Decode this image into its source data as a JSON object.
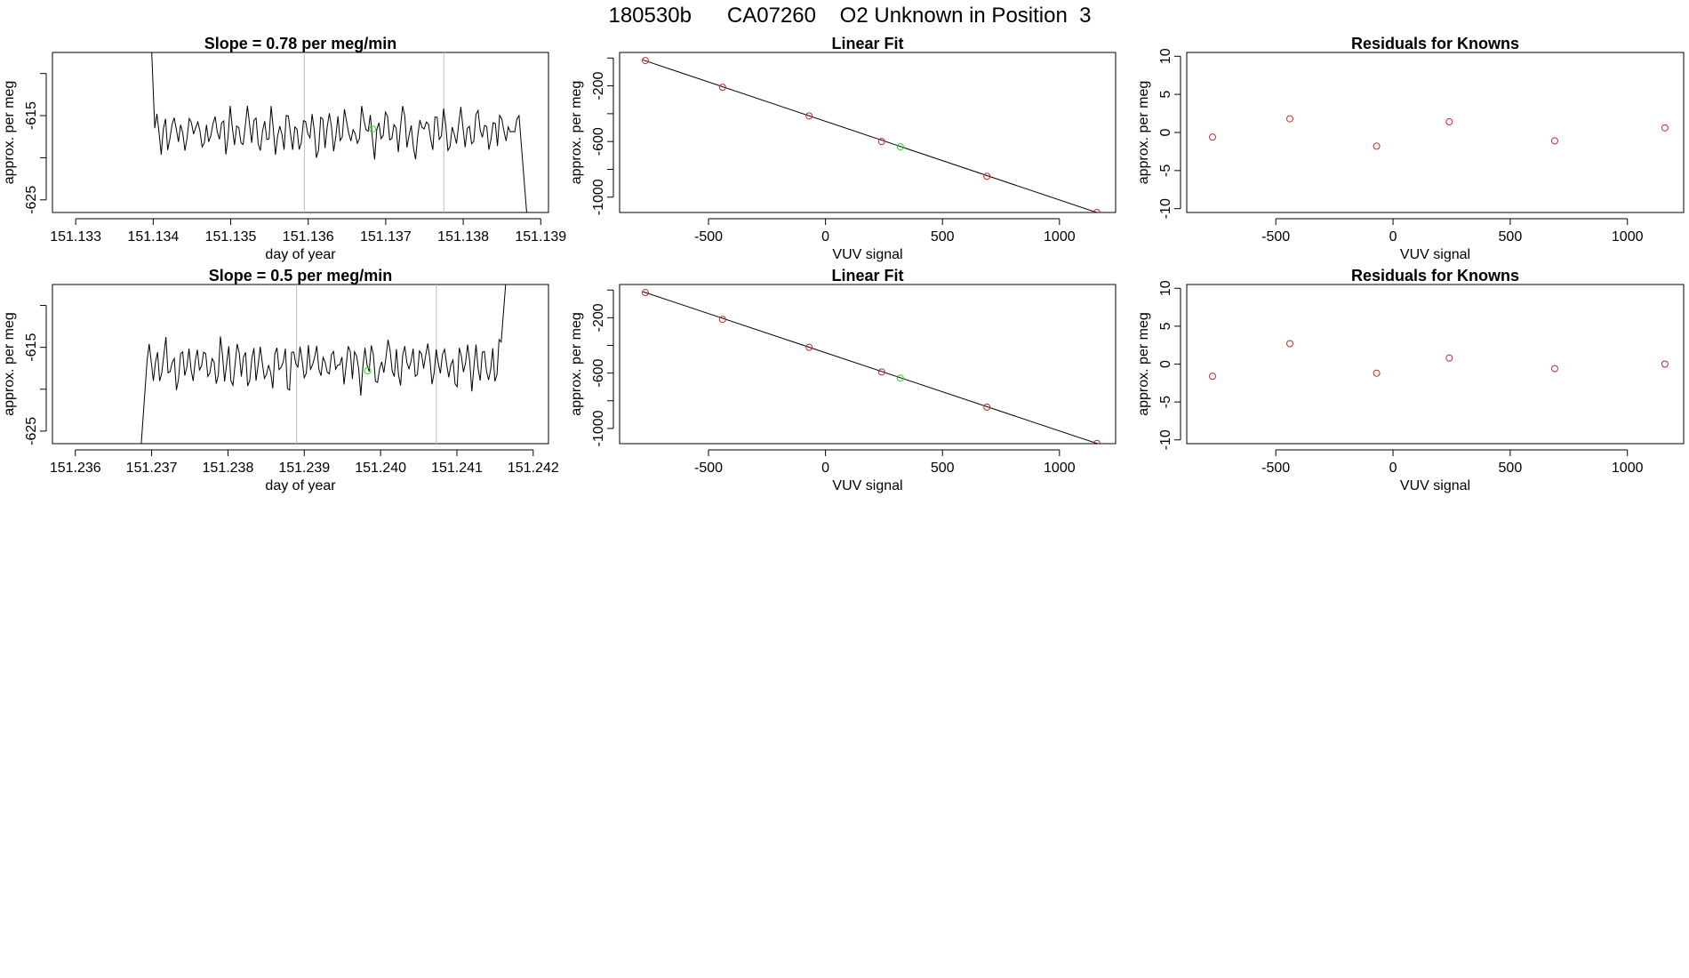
{
  "page_title": "180530b      CA07260    O2 Unknown in Position  3",
  "colors": {
    "trace": "#000000",
    "known_point": "#cd2626",
    "unknown_point": "#22dd22",
    "marker_line": "#bdbdbd",
    "fit_line": "#000000",
    "frame": "#000000"
  },
  "chart_data": [
    {
      "type": "line",
      "name": "timeseries-1",
      "title": "Slope =  0.78  per meg/min",
      "xlabel": "day of year",
      "ylabel": "approx. per meg",
      "xlim": [
        151.1327,
        151.1391
      ],
      "ylim": [
        -626.5,
        -607.5
      ],
      "xticks": [
        151.133,
        151.134,
        151.135,
        151.136,
        151.137,
        151.138,
        151.139
      ],
      "xtick_labels": [
        "151.133",
        "151.134",
        "151.135",
        "151.136",
        "151.137",
        "151.138",
        "151.139"
      ],
      "yticks": [
        -625,
        -620,
        -615,
        -610
      ],
      "ytick_labels": [
        "-625",
        "",
        "-615",
        ""
      ],
      "markers_x": [
        151.13595,
        151.13775
      ],
      "trace_seed": 11,
      "trace": {
        "x_start": 151.13402,
        "x_end": 151.13872,
        "n": 170,
        "center": -616.8,
        "amplitude": 2.6,
        "start_y": -605,
        "end_y": -629,
        "lead_in": 5e-05,
        "lead_out": 0.00012
      },
      "unknown_point": {
        "x": 151.13683,
        "y": -616.6
      }
    },
    {
      "type": "scatter",
      "name": "linear-fit-1",
      "title": "Linear Fit",
      "xlabel": "VUV signal",
      "ylabel": "approx. per meg",
      "xlim": [
        -880,
        1240
      ],
      "ylim": [
        -1110,
        40
      ],
      "xticks": [
        -500,
        0,
        500,
        1000
      ],
      "xtick_labels": [
        "-500",
        "0",
        "500",
        "1000"
      ],
      "yticks": [
        -1000,
        -800,
        -600,
        -400,
        -200,
        0
      ],
      "ytick_labels": [
        "-1000",
        "",
        "-600",
        "",
        "-200",
        ""
      ],
      "knowns": [
        {
          "x": -770,
          "y": -18
        },
        {
          "x": -440,
          "y": -210
        },
        {
          "x": -70,
          "y": -416
        },
        {
          "x": 240,
          "y": -600
        },
        {
          "x": 690,
          "y": -850
        },
        {
          "x": 1160,
          "y": -1110
        }
      ],
      "unknown": {
        "x": 320,
        "y": -638
      },
      "fit": {
        "x1": -780,
        "y1": -14,
        "x2": 1170,
        "y2": -1116
      }
    },
    {
      "type": "scatter",
      "name": "residuals-1",
      "title": "Residuals for Knowns",
      "xlabel": "VUV signal",
      "ylabel": "approx. per meg",
      "xlim": [
        -880,
        1240
      ],
      "ylim": [
        -10.5,
        10.5
      ],
      "xticks": [
        -500,
        0,
        500,
        1000
      ],
      "xtick_labels": [
        "-500",
        "0",
        "500",
        "1000"
      ],
      "yticks": [
        -10,
        -5,
        0,
        5,
        10
      ],
      "ytick_labels": [
        "-10",
        "-5",
        "0",
        "5",
        "10"
      ],
      "points": [
        {
          "x": -770,
          "y": -0.6
        },
        {
          "x": -440,
          "y": 1.8
        },
        {
          "x": -70,
          "y": -1.8
        },
        {
          "x": 240,
          "y": 1.4
        },
        {
          "x": 690,
          "y": -1.1
        },
        {
          "x": 1160,
          "y": 0.6
        }
      ]
    },
    {
      "type": "line",
      "name": "timeseries-2",
      "title": "Slope =  0.5  per meg/min",
      "xlabel": "day of year",
      "ylabel": "approx. per meg",
      "xlim": [
        151.2357,
        151.2422
      ],
      "ylim": [
        -626.5,
        -607.5
      ],
      "xticks": [
        151.236,
        151.237,
        151.238,
        151.239,
        151.24,
        151.241,
        151.242
      ],
      "xtick_labels": [
        "151.236",
        "151.237",
        "151.238",
        "151.239",
        "151.240",
        "151.241",
        "151.242"
      ],
      "yticks": [
        -625,
        -620,
        -615,
        -610
      ],
      "ytick_labels": [
        "-625",
        "",
        "-615",
        ""
      ],
      "markers_x": [
        151.2389,
        151.24073
      ],
      "trace_seed": 23,
      "trace": {
        "x_start": 151.23694,
        "x_end": 151.24158,
        "n": 170,
        "center": -617.0,
        "amplitude": 2.8,
        "start_y": -627,
        "end_y": -605,
        "lead_in": 8e-05,
        "lead_out": 8e-05
      },
      "unknown_point": {
        "x": 151.23983,
        "y": -617.8
      }
    },
    {
      "type": "scatter",
      "name": "linear-fit-2",
      "title": "Linear Fit",
      "xlabel": "VUV signal",
      "ylabel": "approx. per meg",
      "xlim": [
        -880,
        1240
      ],
      "ylim": [
        -1110,
        40
      ],
      "xticks": [
        -500,
        0,
        500,
        1000
      ],
      "xtick_labels": [
        "-500",
        "0",
        "500",
        "1000"
      ],
      "yticks": [
        -1000,
        -800,
        -600,
        -400,
        -200,
        0
      ],
      "ytick_labels": [
        "-1000",
        "",
        "-600",
        "",
        "-200",
        ""
      ],
      "knowns": [
        {
          "x": -770,
          "y": -18
        },
        {
          "x": -440,
          "y": -212
        },
        {
          "x": -70,
          "y": -414
        },
        {
          "x": 240,
          "y": -592
        },
        {
          "x": 690,
          "y": -846
        },
        {
          "x": 1160,
          "y": -1108
        }
      ],
      "unknown": {
        "x": 320,
        "y": -636
      },
      "fit": {
        "x1": -780,
        "y1": -12,
        "x2": 1170,
        "y2": -1114
      }
    },
    {
      "type": "scatter",
      "name": "residuals-2",
      "title": "Residuals for Knowns",
      "xlabel": "VUV signal",
      "ylabel": "approx. per meg",
      "xlim": [
        -880,
        1240
      ],
      "ylim": [
        -10.5,
        10.5
      ],
      "xticks": [
        -500,
        0,
        500,
        1000
      ],
      "xtick_labels": [
        "-500",
        "0",
        "500",
        "1000"
      ],
      "yticks": [
        -10,
        -5,
        0,
        5,
        10
      ],
      "ytick_labels": [
        "-10",
        "-5",
        "0",
        "5",
        "10"
      ],
      "points": [
        {
          "x": -770,
          "y": -1.6
        },
        {
          "x": -440,
          "y": 2.7
        },
        {
          "x": -70,
          "y": -1.2
        },
        {
          "x": 240,
          "y": 0.8
        },
        {
          "x": 690,
          "y": -0.6
        },
        {
          "x": 1160,
          "y": 0.0
        }
      ]
    }
  ]
}
